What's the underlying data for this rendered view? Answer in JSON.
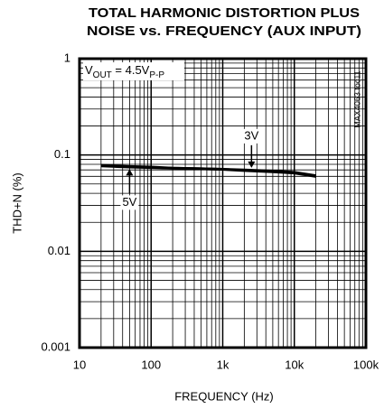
{
  "chart_data": {
    "type": "line",
    "title": [
      "TOTAL HARMONIC DISTORTION PLUS",
      "NOISE vs. FREQUENCY (AUX INPUT)"
    ],
    "xlabel": "FREQUENCY (Hz)",
    "ylabel": "THD+N (%)",
    "annotations": {
      "vout": [
        "V",
        "OUT",
        " = 4.5V",
        "P-P"
      ],
      "code": "MAX4063 toc11"
    },
    "log_x": true,
    "log_y": true,
    "grid": true,
    "minor_grid": true,
    "xlim": [
      10,
      100000
    ],
    "ylim": [
      0.001,
      1
    ],
    "xticks": [
      10,
      100,
      {
        "value": 1000,
        "label": "1k"
      },
      {
        "value": 10000,
        "label": "10k"
      },
      {
        "value": 100000,
        "label": "100k"
      }
    ],
    "yticks": [
      0.001,
      0.01,
      0.1,
      1
    ],
    "x": [
      20,
      50,
      100,
      200,
      500,
      1000,
      2000,
      5000,
      10000,
      20000
    ],
    "series": [
      {
        "name": "3V",
        "color": "#000000",
        "values": [
          0.077,
          0.075,
          0.074,
          0.073,
          0.072,
          0.071,
          0.069,
          0.067,
          0.065,
          0.06
        ]
      },
      {
        "name": "5V",
        "color": "#000000",
        "values": [
          0.078,
          0.076,
          0.075,
          0.073,
          0.072,
          0.071,
          0.07,
          0.068,
          0.066,
          0.061
        ]
      }
    ]
  }
}
